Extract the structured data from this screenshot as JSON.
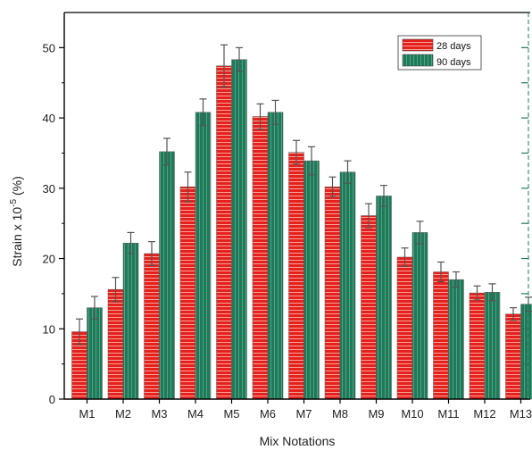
{
  "chart_data": {
    "type": "bar",
    "title": "",
    "xlabel": "Mix Notations",
    "ylabel_main": "Strain x 10",
    "ylabel_exp": "-5",
    "ylabel_unit": " (%)",
    "categories": [
      "M1",
      "M2",
      "M3",
      "M4",
      "M5",
      "M6",
      "M7",
      "M8",
      "M9",
      "M10",
      "M11",
      "M12",
      "M13"
    ],
    "ylim": [
      0,
      55
    ],
    "yticks": [
      0,
      10,
      20,
      30,
      40,
      50
    ],
    "grid": false,
    "legend": "top-right",
    "series": [
      {
        "name": "28 days",
        "color": "#e8201c",
        "pattern": "horizontal-lines",
        "values": [
          9.6,
          15.6,
          20.7,
          30.2,
          47.4,
          40.2,
          35.1,
          30.2,
          26.1,
          20.2,
          18.1,
          15.1,
          12.1
        ],
        "errors": [
          1.8,
          1.7,
          1.7,
          2.1,
          3.0,
          1.8,
          1.7,
          1.4,
          1.7,
          1.3,
          1.4,
          1.0,
          0.9
        ]
      },
      {
        "name": "90 days",
        "color": "#1f7a5a",
        "pattern": "vertical-lines",
        "values": [
          13.0,
          22.2,
          35.2,
          40.8,
          48.3,
          40.8,
          33.9,
          32.3,
          28.9,
          23.7,
          17.0,
          15.2,
          13.5
        ],
        "errors": [
          1.6,
          1.5,
          1.9,
          1.9,
          1.7,
          1.7,
          2.0,
          1.6,
          1.5,
          1.6,
          1.1,
          1.2,
          1.0
        ]
      }
    ]
  }
}
